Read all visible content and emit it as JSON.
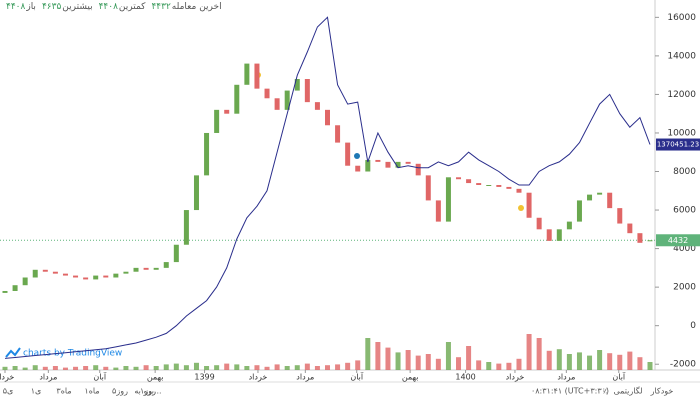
{
  "chart_data": {
    "type": "candlestick",
    "legend": [
      {
        "label": "آخرین معامله",
        "value": "۴۴۳۲"
      },
      {
        "label": "کمترین",
        "value": "۴۴۰۸"
      },
      {
        "label": "بیشترین",
        "value": "۴۶۳۵"
      },
      {
        "label": "باز",
        "value": "۴۴۰۸"
      }
    ],
    "watermark": "charts by TradingView",
    "xlim": [
      0,
      64
    ],
    "xticks": [
      {
        "value": 0,
        "label": "خرداد"
      },
      {
        "value": 4.3,
        "label": "مرداد"
      },
      {
        "value": 9.4,
        "label": "آبان"
      },
      {
        "value": 14.9,
        "label": "بهمن"
      },
      {
        "value": 19.8,
        "label": "1399"
      },
      {
        "value": 25.1,
        "label": "خرداد"
      },
      {
        "value": 29.8,
        "label": "مرداد"
      },
      {
        "value": 34.9,
        "label": "آبان"
      },
      {
        "value": 40.2,
        "label": "بهمن"
      },
      {
        "value": 45.7,
        "label": "1400"
      },
      {
        "value": 50.6,
        "label": "خرداد"
      },
      {
        "value": 55.7,
        "label": "مرداد"
      },
      {
        "value": 60.9,
        "label": "آبان"
      }
    ],
    "ylim": [
      -2300,
      16900
    ],
    "yticks": [
      16000,
      14000,
      12000,
      10000,
      8000,
      6000,
      4000,
      2000,
      0,
      -2000
    ],
    "up_color": "#6aa84f",
    "down_color": "#e06666",
    "series": [
      {
        "name": "price",
        "open": [
          1700,
          1800,
          2100,
          2500,
          2900,
          2800,
          2700,
          2600,
          2500,
          2400,
          2600,
          2500,
          2700,
          2800,
          3000,
          2900,
          3000,
          3300,
          4200,
          6000,
          7800,
          10000,
          11200,
          11000,
          12500,
          13600,
          12300,
          11800,
          11200,
          12200,
          12800,
          11600,
          11200,
          10400,
          9500,
          8300,
          8000,
          8600,
          8500,
          8200,
          8500,
          8400,
          7800,
          6500,
          5400,
          7700,
          7600,
          7400,
          7300,
          7300,
          7200,
          7100,
          6900,
          5600,
          5000,
          4400,
          5000,
          5400,
          6500,
          6800,
          6900,
          6100,
          5300,
          4800,
          4408
        ],
        "close": [
          1800,
          2100,
          2500,
          2900,
          2800,
          2700,
          2600,
          2500,
          2400,
          2600,
          2500,
          2700,
          2800,
          3000,
          2900,
          3000,
          3300,
          4200,
          6000,
          7800,
          10000,
          11200,
          11000,
          12500,
          13600,
          12300,
          11800,
          11200,
          12200,
          12800,
          11600,
          11200,
          10400,
          9500,
          8300,
          8000,
          8600,
          8500,
          8200,
          8500,
          8400,
          7800,
          6500,
          5400,
          7700,
          7600,
          7400,
          7300,
          7300,
          7200,
          7100,
          6900,
          5600,
          5000,
          4400,
          5000,
          5400,
          6500,
          6800,
          6900,
          6100,
          5300,
          4800,
          4300,
          4432
        ],
        "last_label": "4432",
        "last_color": "#5fb37a"
      },
      {
        "name": "index",
        "color": "#2a2e8c",
        "values": [
          -1700,
          -1650,
          -1600,
          -1550,
          -1500,
          -1450,
          -1400,
          -1350,
          -1300,
          -1250,
          -1200,
          -1100,
          -1000,
          -900,
          -750,
          -600,
          -400,
          0,
          500,
          900,
          1300,
          2000,
          3000,
          4500,
          5600,
          6200,
          7000,
          9000,
          11000,
          13000,
          14200,
          15500,
          16000,
          12500,
          11500,
          11600,
          8500,
          10000,
          9000,
          8200,
          8300,
          8200,
          8200,
          8500,
          8300,
          8500,
          9000,
          8600,
          8300,
          8000,
          7600,
          7300,
          7300,
          8000,
          8300,
          8500,
          8900,
          9500,
          10500,
          11500,
          12000,
          11000,
          10300,
          10800,
          9400
        ],
        "last_label": "1370451.23"
      }
    ],
    "volume_lim": [
      0,
      100
    ],
    "volume": [
      4,
      5,
      3,
      6,
      4,
      5,
      3,
      4,
      5,
      6,
      4,
      3,
      5,
      4,
      6,
      5,
      7,
      8,
      6,
      9,
      5,
      6,
      8,
      7,
      5,
      6,
      4,
      7,
      5,
      6,
      8,
      5,
      6,
      7,
      9,
      12,
      40,
      35,
      28,
      22,
      25,
      18,
      20,
      14,
      35,
      16,
      30,
      12,
      10,
      8,
      9,
      14,
      45,
      40,
      24,
      26,
      20,
      22,
      18,
      25,
      21,
      19,
      23,
      16,
      10
    ],
    "toolbar": {
      "ranges": [
        "۵ی",
        "۱ی",
        "۳ماه",
        "۱ماه",
        "۵روز",
        "۱روز"
      ],
      "goto": "برو به...",
      "time": "۰۸:۳۱:۴۱ (UTC+۳:۳۰)",
      "percent": "٪",
      "log": "لگاریتمی",
      "auto": "خودکار"
    }
  }
}
